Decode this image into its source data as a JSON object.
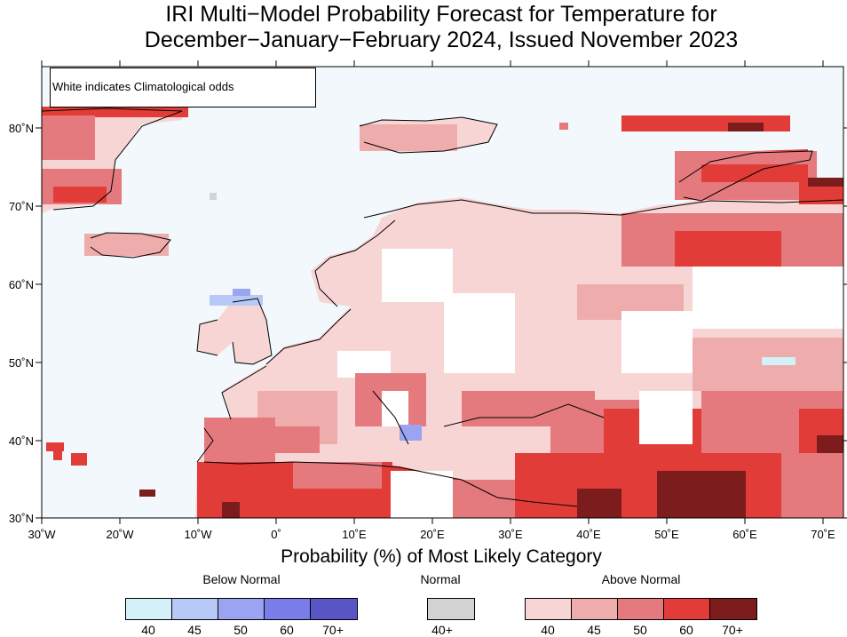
{
  "title_line1": "IRI Multi−Model Probability Forecast for Temperature for",
  "title_line2": "December−January−February 2024, Issued November 2023",
  "note": "White indicates Climatological odds",
  "lat_labels": [
    "80˚N",
    "70˚N",
    "60˚N",
    "50˚N",
    "40˚N",
    "30˚N"
  ],
  "lon_labels": [
    "30˚W",
    "20˚W",
    "10˚W",
    "0˚",
    "10˚E",
    "20˚E",
    "30˚E",
    "40˚E",
    "50˚E",
    "60˚E",
    "70˚E"
  ],
  "legend": {
    "title": "Probability (%) of Most Likely Category",
    "below": {
      "label": "Below Normal",
      "colors": [
        "#d4f1f9",
        "#b7caf7",
        "#9ba4f0",
        "#7a7ce8",
        "#5a55c7"
      ],
      "ticks": [
        "40",
        "45",
        "50",
        "60",
        "70+"
      ]
    },
    "normal": {
      "label": "Normal",
      "colors": [
        "#d3d3d3"
      ],
      "ticks": [
        "40+"
      ]
    },
    "above": {
      "label": "Above Normal",
      "colors": [
        "#f8d5d5",
        "#eeacac",
        "#e57a7e",
        "#e23c38",
        "#7d1c1c"
      ],
      "ticks": [
        "40",
        "45",
        "50",
        "60",
        "70+"
      ]
    }
  },
  "colors": {
    "ocean": "#f2f8fc",
    "land_white": "#ffffff",
    "coast": "#000000",
    "border": "#999999"
  }
}
